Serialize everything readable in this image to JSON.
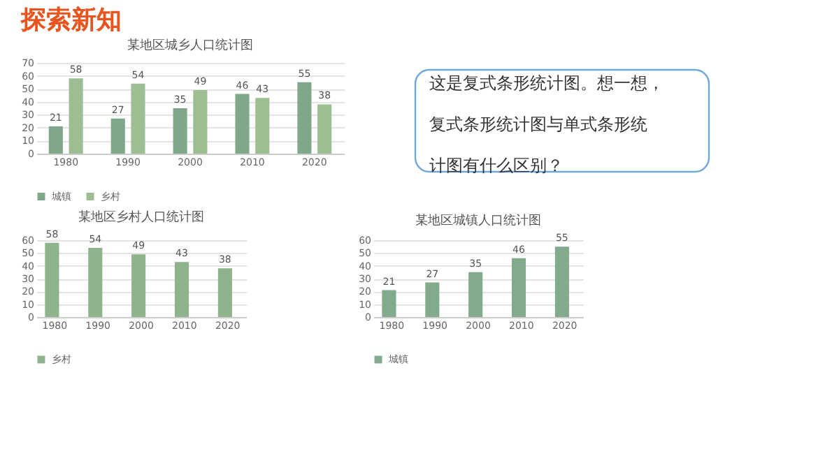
{
  "chart_data": [
    {
      "type": "bar",
      "title": "某地区城乡人口统计图",
      "categories": [
        "1980",
        "1990",
        "2000",
        "2010",
        "2020"
      ],
      "series": [
        {
          "name": "城镇",
          "color": "#7fa88a",
          "values": [
            21,
            27,
            35,
            46,
            55
          ]
        },
        {
          "name": "乡村",
          "color": "#9dbe93",
          "values": [
            58,
            54,
            49,
            43,
            38
          ]
        }
      ],
      "ylim": [
        0,
        70
      ],
      "yticks": [
        0,
        10,
        20,
        30,
        40,
        50,
        60,
        70
      ],
      "grid": "y",
      "legend": "bottom",
      "data_labels": true
    },
    {
      "type": "other",
      "title": "探索新知",
      "annotations": [
        "这是复式条形统计图。想一想，",
        "复式条形统计图与单式条形统",
        "计图有什么区别？"
      ]
    },
    {
      "type": "bar",
      "title": "某地区乡村人口统计图",
      "categories": [
        "1980",
        "1990",
        "2000",
        "2010",
        "2020"
      ],
      "series": [
        {
          "name": "乡村",
          "color": "#8fb38c",
          "values": [
            58,
            54,
            49,
            43,
            38
          ]
        }
      ],
      "ylim": [
        0,
        60
      ],
      "yticks": [
        0,
        10,
        20,
        30,
        40,
        50,
        60
      ],
      "grid": "y",
      "legend": "bottom",
      "data_labels": true
    },
    {
      "type": "bar",
      "title": "某地区城镇人口统计图",
      "categories": [
        "1980",
        "1990",
        "2000",
        "2010",
        "2020"
      ],
      "series": [
        {
          "name": "城镇",
          "color": "#82aa8c",
          "values": [
            21,
            27,
            35,
            46,
            55
          ]
        }
      ],
      "ylim": [
        0,
        60
      ],
      "yticks": [
        0,
        10,
        20,
        30,
        40,
        50,
        60
      ],
      "grid": "y",
      "legend": "bottom",
      "data_labels": true
    }
  ]
}
